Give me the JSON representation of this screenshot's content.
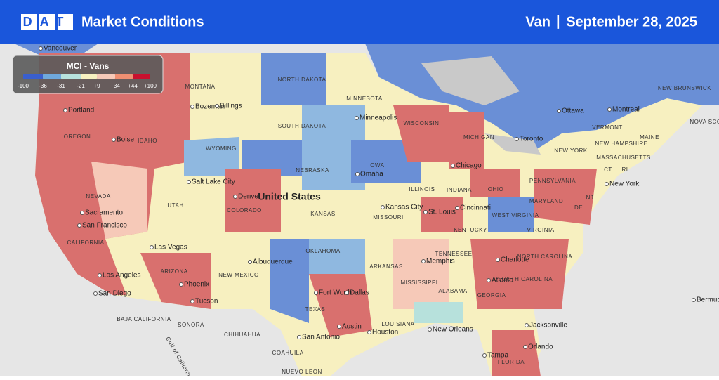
{
  "header": {
    "logo": "DAT",
    "title": "Market Conditions",
    "mode": "Van",
    "separator": "|",
    "date": "September 28, 2025"
  },
  "legend": {
    "title": "MCI - Vans",
    "labels": [
      "-100",
      "-36",
      "-31",
      "-21",
      "+9",
      "+34",
      "+44",
      "+100"
    ],
    "colors": [
      "#3a5fcd",
      "#6fa8dc",
      "#b7e1dc",
      "#f7f0c0",
      "#f6c9b8",
      "#ee8f72",
      "#c8102e"
    ]
  },
  "map": {
    "country": "United States",
    "cities": [
      "Vancouver",
      "Portland",
      "Bozeman",
      "Billings",
      "Minneapolis",
      "Ottawa",
      "Montreal",
      "Boise",
      "Toronto",
      "Salt Lake City",
      "Omaha",
      "Chicago",
      "New York",
      "Denver",
      "Kansas City",
      "St. Louis",
      "Cincinnati",
      "Sacramento",
      "San Francisco",
      "Las Vegas",
      "Albuquerque",
      "Charlotte",
      "Memphis",
      "Los Angeles",
      "Phoenix",
      "Atlanta",
      "Fort Worth",
      "Dallas",
      "San Diego",
      "Tucson",
      "Bermuda",
      "Austin",
      "Houston",
      "New Orleans",
      "Jacksonville",
      "San Antonio",
      "Orlando",
      "Tampa"
    ],
    "regions": [
      "MONTANA",
      "NORTH DAKOTA",
      "MINNESOTA",
      "WISCONSIN",
      "MICHIGAN",
      "MAINE",
      "NEW BRUNSWICK",
      "VERMONT",
      "NOVA SCO",
      "OREGON",
      "IDAHO",
      "SOUTH DAKOTA",
      "WYOMING",
      "NEW YORK",
      "NEW HAMPSHIRE",
      "MASSACHUSETTS",
      "CT",
      "RI",
      "NEBRASKA",
      "IOWA",
      "ILLINOIS",
      "INDIANA",
      "OHIO",
      "PENNSYLVANIA",
      "NEVADA",
      "COLORADO",
      "UTAH",
      "KANSAS",
      "MISSOURI",
      "WEST VIRGINIA",
      "MARYLAND",
      "DE",
      "NJ",
      "CALIFORNIA",
      "KENTUCKY",
      "VIRGINIA",
      "OKLAHOMA",
      "TENNESSEE",
      "NORTH CAROLINA",
      "ARKANSAS",
      "NEW MEXICO",
      "ARIZONA",
      "SOUTH CAROLINA",
      "MISSISSIPPI",
      "ALABAMA",
      "GEORGIA",
      "TEXAS",
      "BAJA CALIFORNIA",
      "SONORA",
      "CHIHUAHUA",
      "LOUISIANA",
      "COAHUILA",
      "FLORIDA",
      "NUEVO LEON",
      "Gulf of California"
    ]
  }
}
